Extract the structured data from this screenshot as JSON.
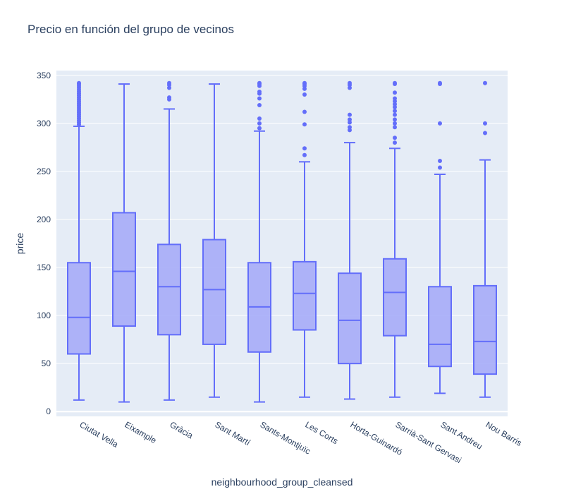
{
  "chart_data": {
    "type": "box",
    "title": "Precio en función del grupo de vecinos",
    "xlabel": "neighbourhood_group_cleansed",
    "ylabel": "price",
    "ylim": [
      -5,
      355
    ],
    "yticks": [
      0,
      50,
      100,
      150,
      200,
      250,
      300,
      350
    ],
    "grid": true,
    "colors": {
      "box_line": "#636efa",
      "box_fill": "#a6acf8",
      "plot_bg": "#e5ecf6",
      "grid": "#ffffff",
      "text": "#2a3f5f"
    },
    "categories": [
      "Ciutat Vella",
      "Eixample",
      "Gràcia",
      "Sant Martí",
      "Sants-Montjuïc",
      "Les Corts",
      "Horta-Guinardó",
      "Sarrià-Sant Gervasi",
      "Sant Andreu",
      "Nou Barris"
    ],
    "boxes": [
      {
        "min": 12,
        "q1": 60,
        "median": 98,
        "q3": 155,
        "max": 297,
        "outliers": [
          299,
          301,
          303,
          305,
          307,
          309,
          311,
          313,
          315,
          317,
          319,
          321,
          323,
          325,
          327,
          329,
          331,
          333,
          335,
          337,
          339,
          341,
          342
        ]
      },
      {
        "min": 10,
        "q1": 89,
        "median": 146,
        "q3": 207,
        "max": 341,
        "outliers": []
      },
      {
        "min": 12,
        "q1": 80,
        "median": 130,
        "q3": 174,
        "max": 315,
        "outliers": [
          325,
          327,
          337,
          340,
          342
        ]
      },
      {
        "min": 15,
        "q1": 70,
        "median": 127,
        "q3": 179,
        "max": 341,
        "outliers": []
      },
      {
        "min": 10,
        "q1": 62,
        "median": 109,
        "q3": 155,
        "max": 292,
        "outliers": [
          295,
          300,
          305,
          319,
          326,
          331,
          333,
          339,
          341,
          342
        ]
      },
      {
        "min": 15,
        "q1": 85,
        "median": 123,
        "q3": 156,
        "max": 260,
        "outliers": [
          267,
          274,
          299,
          312,
          330,
          336,
          339,
          341,
          342
        ]
      },
      {
        "min": 13,
        "q1": 50,
        "median": 95,
        "q3": 144,
        "max": 280,
        "outliers": [
          293,
          296,
          301,
          304,
          309,
          337,
          340,
          342
        ]
      },
      {
        "min": 15,
        "q1": 79,
        "median": 124,
        "q3": 159,
        "max": 274,
        "outliers": [
          280,
          285,
          296,
          300,
          304,
          309,
          313,
          317,
          320,
          323,
          326,
          332,
          341,
          342
        ]
      },
      {
        "min": 19,
        "q1": 47,
        "median": 70,
        "q3": 130,
        "max": 247,
        "outliers": [
          254,
          261,
          300,
          341,
          342
        ]
      },
      {
        "min": 15,
        "q1": 39,
        "median": 73,
        "q3": 131,
        "max": 262,
        "outliers": [
          290,
          300,
          342
        ]
      }
    ]
  }
}
